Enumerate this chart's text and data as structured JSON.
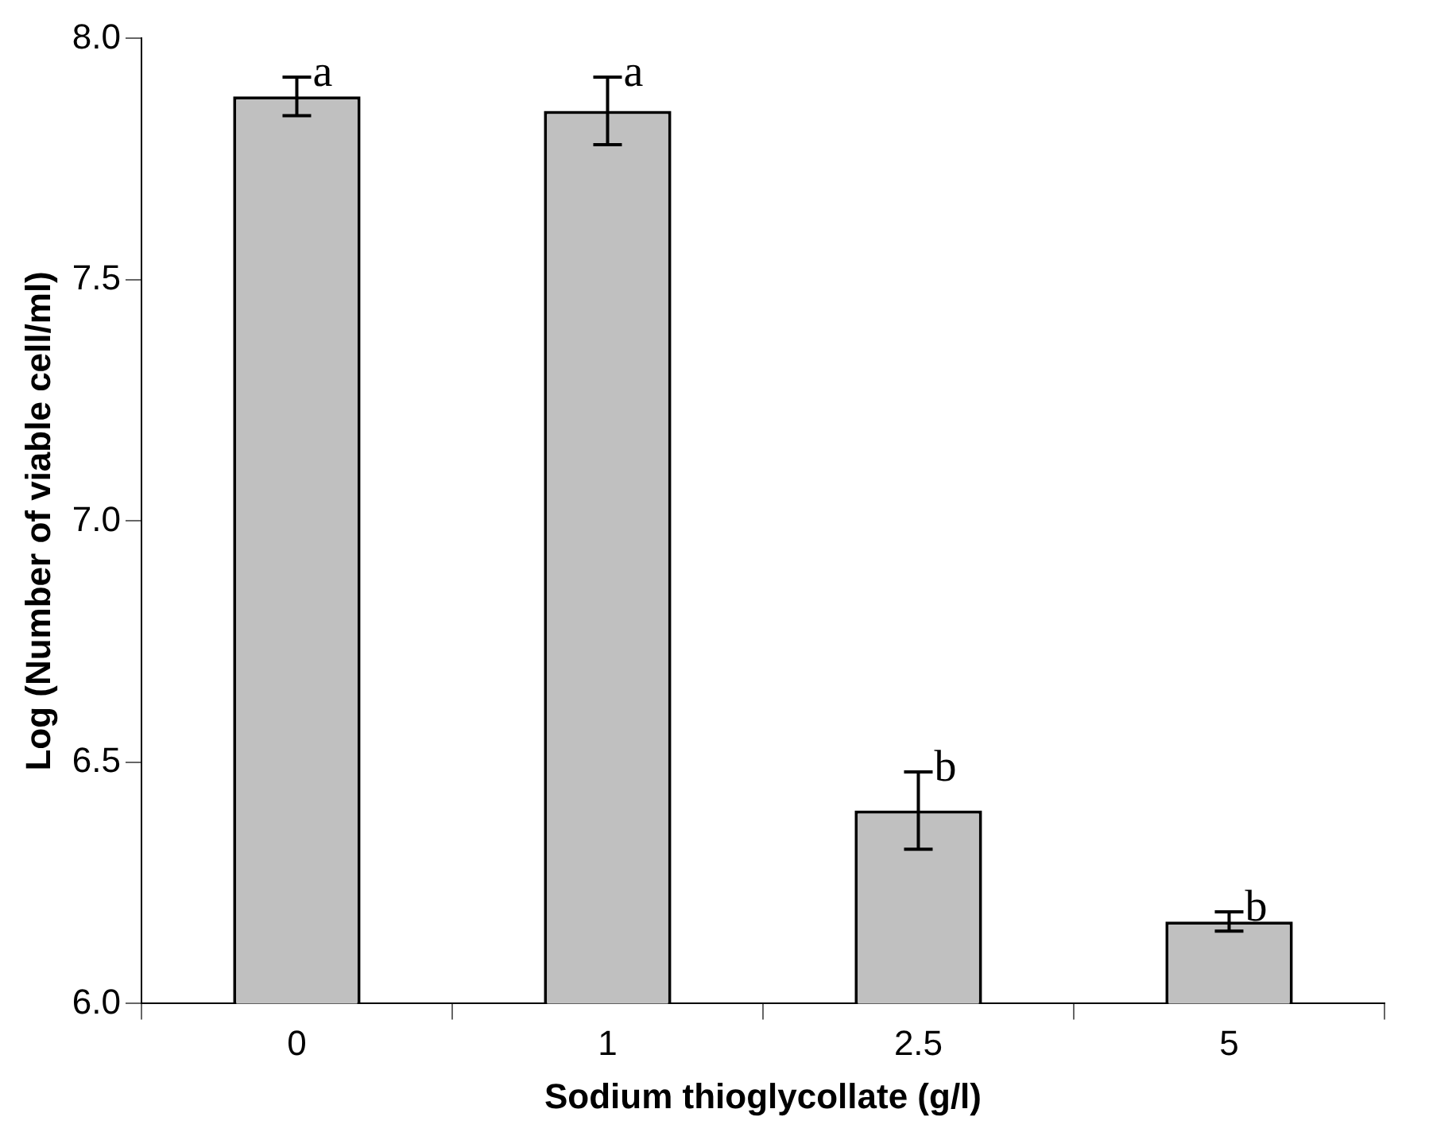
{
  "chart_data": {
    "type": "bar",
    "xlabel": "Sodium thioglycollate (g/l)",
    "ylabel": "Log (Number of viable cell/ml)",
    "categories": [
      "0",
      "1",
      "2.5",
      "5"
    ],
    "values": [
      7.88,
      7.85,
      6.4,
      6.17
    ],
    "errors": [
      0.04,
      0.07,
      0.08,
      0.02
    ],
    "color": "#c0c0c0",
    "ylim": [
      6.0,
      8.0
    ],
    "yticks": [
      {
        "value": 6.0,
        "label": "6.0"
      },
      {
        "value": 6.5,
        "label": "6.5"
      },
      {
        "value": 7.0,
        "label": "7.0"
      },
      {
        "value": 7.5,
        "label": "7.5"
      },
      {
        "value": 8.0,
        "label": "8.0"
      }
    ],
    "annotations": [
      {
        "text": "a",
        "x": "0",
        "y": 7.92
      },
      {
        "text": "a",
        "x": "1",
        "y": 7.92
      },
      {
        "text": "b",
        "x": "2.5",
        "y": 6.48
      },
      {
        "text": "b",
        "x": "5",
        "y": 6.19
      }
    ],
    "grid": false,
    "legend": false
  }
}
